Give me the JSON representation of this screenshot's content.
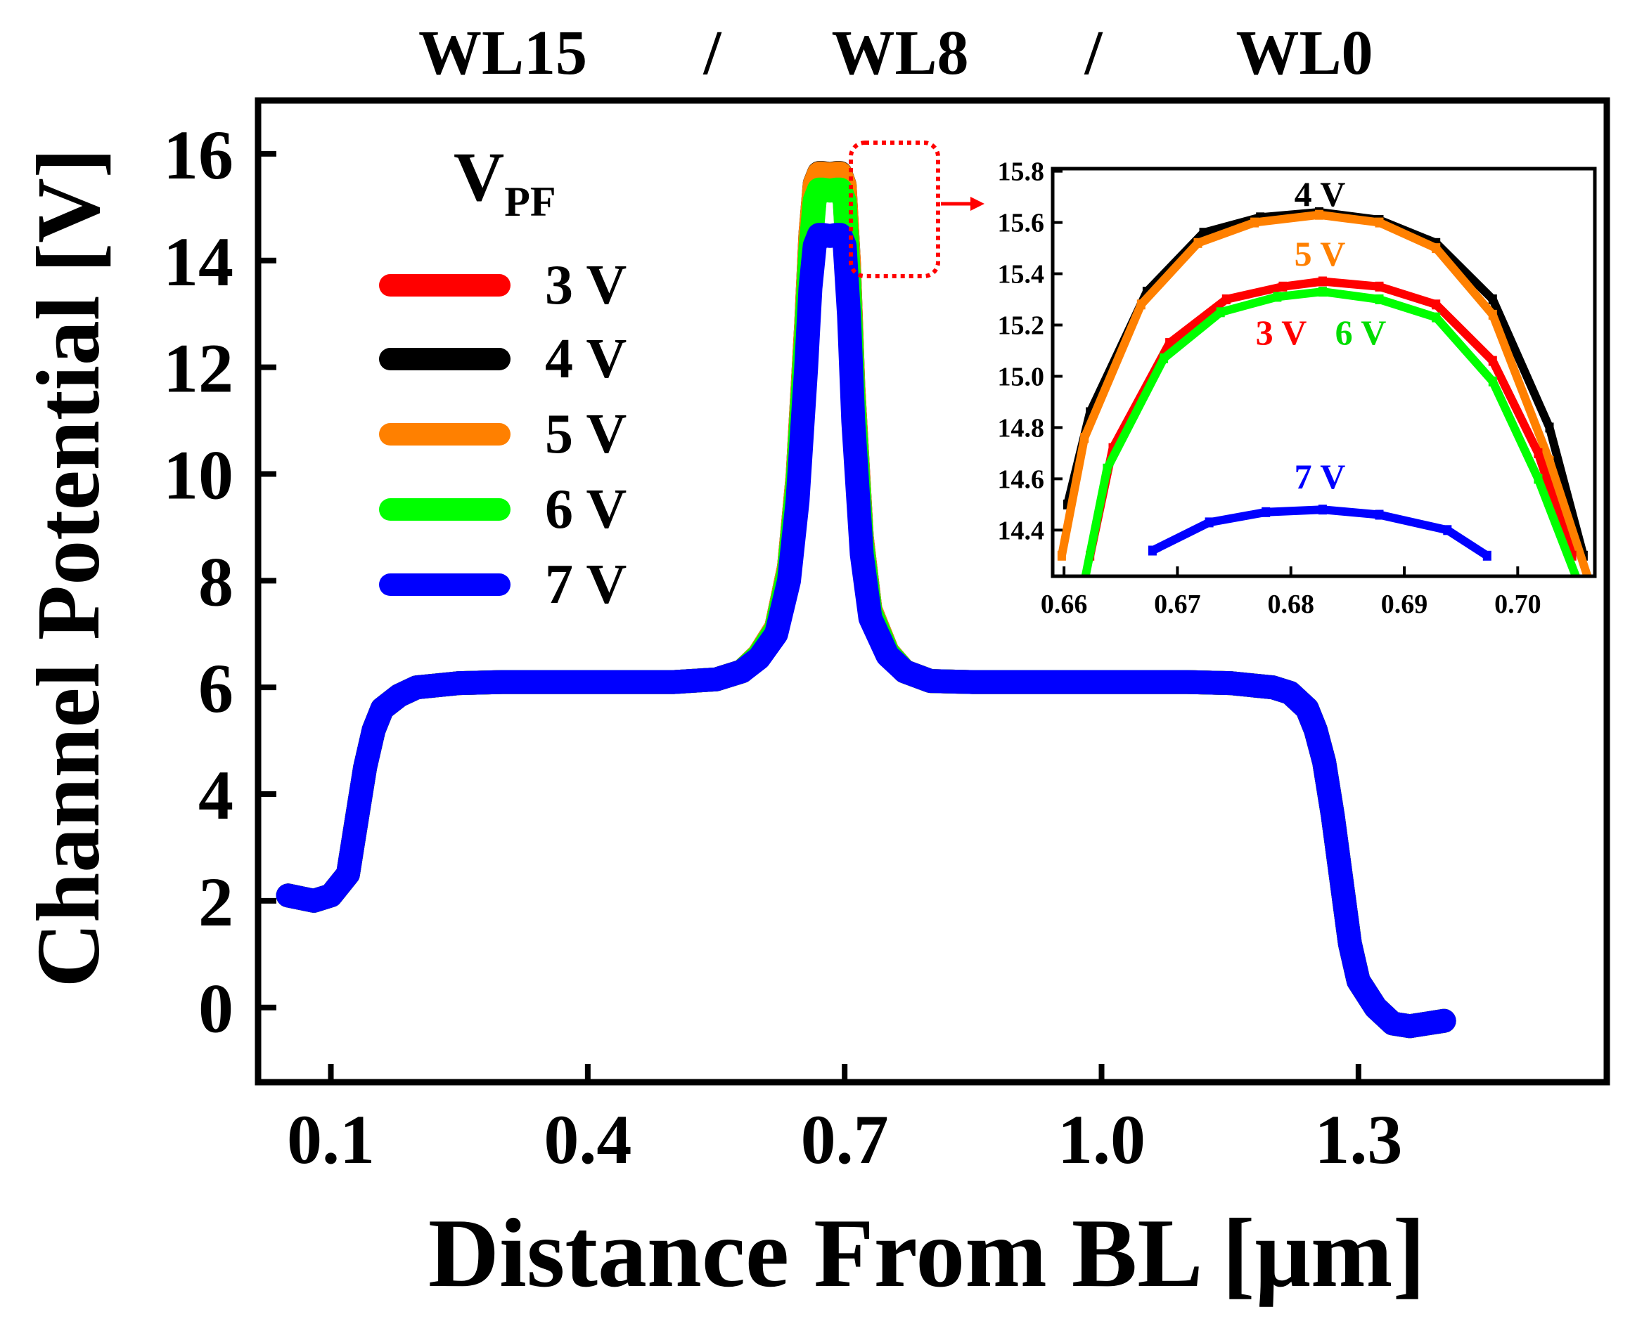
{
  "chart_data": [
    {
      "type": "line",
      "xlabel": "Distance From BL [μm]",
      "ylabel": "Channel Potential [V]",
      "xlim": [
        0.015,
        1.59
      ],
      "ylim": [
        -1.4,
        17.0
      ],
      "xticks": [
        "0.1",
        "0.4",
        "0.7",
        "1.0",
        "1.3"
      ],
      "xtick_values": [
        0.1,
        0.4,
        0.7,
        1.0,
        1.3
      ],
      "yticks": [
        "0",
        "2",
        "4",
        "6",
        "8",
        "10",
        "12",
        "14",
        "16"
      ],
      "ytick_values": [
        0,
        2,
        4,
        6,
        8,
        10,
        12,
        14,
        16
      ],
      "wordline_labels": [
        "WL15",
        "/",
        "WL8",
        "/",
        "WL0"
      ],
      "legend": {
        "title_main": "V",
        "title_sub": "PF",
        "placement": "upper-left",
        "entries": [
          "3 V",
          "4 V",
          "5 V",
          "6 V",
          "7 V"
        ]
      },
      "grid": false,
      "series": [
        {
          "name": "3 V",
          "color": "#ff0000",
          "peak": 15.37
        },
        {
          "name": "4 V",
          "color": "#000000",
          "peak": 15.64
        },
        {
          "name": "5 V",
          "color": "#ff8000",
          "peak": 15.63
        },
        {
          "name": "6 V",
          "color": "#00ff00",
          "peak": 15.33
        },
        {
          "name": "7 V",
          "color": "#0000ff",
          "peak": 14.48
        }
      ],
      "base_profile": {
        "x": [
          0.05,
          0.08,
          0.1,
          0.12,
          0.13,
          0.14,
          0.15,
          0.16,
          0.18,
          0.2,
          0.25,
          0.3,
          0.4,
          0.5,
          0.55,
          0.58,
          0.6,
          0.62,
          0.635,
          0.645,
          0.655,
          0.66,
          0.665,
          0.67,
          0.675,
          0.683,
          0.69,
          0.695,
          0.7,
          0.705,
          0.71,
          0.72,
          0.73,
          0.75,
          0.77,
          0.8,
          0.85,
          0.9,
          1.0,
          1.1,
          1.15,
          1.2,
          1.22,
          1.24,
          1.25,
          1.26,
          1.27,
          1.28,
          1.29,
          1.3,
          1.32,
          1.34,
          1.36,
          1.38,
          1.4
        ],
        "y": [
          2.1,
          2.0,
          2.1,
          2.5,
          3.5,
          4.5,
          5.2,
          5.6,
          5.85,
          6.0,
          6.08,
          6.1,
          6.1,
          6.1,
          6.15,
          6.3,
          6.55,
          7.0,
          8.0,
          9.5,
          12.0,
          13.5,
          14.3,
          14.5,
          14.5,
          14.48,
          14.5,
          14.5,
          14.3,
          13.0,
          11.0,
          8.5,
          7.3,
          6.6,
          6.3,
          6.12,
          6.1,
          6.1,
          6.1,
          6.1,
          6.08,
          6.0,
          5.9,
          5.6,
          5.2,
          4.6,
          3.6,
          2.4,
          1.2,
          0.5,
          0.0,
          -0.3,
          -0.35,
          -0.3,
          -0.25
        ]
      }
    },
    {
      "type": "line",
      "xlim": [
        0.659,
        0.7068
      ],
      "ylim": [
        14.22,
        15.81
      ],
      "xticks": [
        "0.66",
        "0.67",
        "0.68",
        "0.69",
        "0.70"
      ],
      "xtick_values": [
        0.66,
        0.67,
        0.68,
        0.69,
        0.7
      ],
      "yticks": [
        "14.4",
        "14.6",
        "14.8",
        "15.0",
        "15.2",
        "15.4",
        "15.6",
        "15.8"
      ],
      "ytick_values": [
        14.4,
        14.6,
        14.8,
        15.0,
        15.2,
        15.4,
        15.6,
        15.8
      ],
      "series_labels": [
        "4 V",
        "5 V",
        "3 V",
        "6 V",
        "7 V"
      ],
      "series": [
        {
          "name": "4 V",
          "color": "#000000",
          "x": [
            0.6603,
            0.6623,
            0.6673,
            0.6723,
            0.6773,
            0.6825,
            0.6878,
            0.6928,
            0.6978,
            0.7028,
            0.7058
          ],
          "y": [
            14.5,
            14.86,
            15.33,
            15.56,
            15.62,
            15.64,
            15.61,
            15.52,
            15.3,
            14.8,
            14.3
          ]
        },
        {
          "name": "5 V",
          "color": "#ff8000",
          "x": [
            0.6598,
            0.6618,
            0.6668,
            0.6718,
            0.6768,
            0.6825,
            0.6878,
            0.6928,
            0.6978,
            0.7028,
            0.7063
          ],
          "y": [
            14.3,
            14.76,
            15.28,
            15.52,
            15.6,
            15.63,
            15.6,
            15.5,
            15.24,
            14.67,
            14.2
          ]
        },
        {
          "name": "3 V",
          "color": "#ff0000",
          "x": [
            0.6623,
            0.6643,
            0.6693,
            0.6743,
            0.6793,
            0.6828,
            0.6878,
            0.6928,
            0.6978,
            0.7018,
            0.7048
          ],
          "y": [
            14.3,
            14.72,
            15.13,
            15.3,
            15.35,
            15.37,
            15.35,
            15.28,
            15.06,
            14.7,
            14.3
          ]
        },
        {
          "name": "6 V",
          "color": "#00ff00",
          "x": [
            0.6618,
            0.6638,
            0.6688,
            0.6738,
            0.6788,
            0.6828,
            0.6878,
            0.6928,
            0.6978,
            0.7018,
            0.7053
          ],
          "y": [
            14.2,
            14.64,
            15.07,
            15.25,
            15.31,
            15.33,
            15.3,
            15.23,
            14.98,
            14.6,
            14.2
          ]
        },
        {
          "name": "7 V",
          "color": "#0000ff",
          "x": [
            0.6678,
            0.6728,
            0.6778,
            0.6828,
            0.6878,
            0.6938,
            0.6973
          ],
          "y": [
            14.32,
            14.43,
            14.47,
            14.48,
            14.46,
            14.4,
            14.3
          ]
        }
      ]
    }
  ]
}
